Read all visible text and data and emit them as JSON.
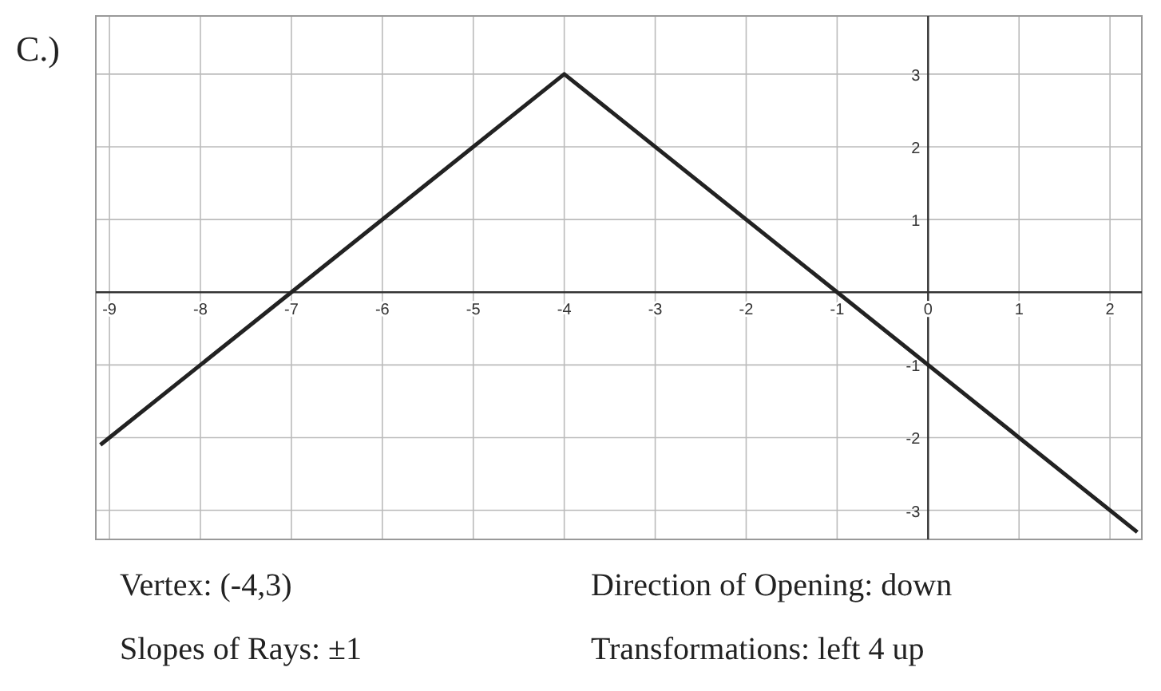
{
  "chart_data": {
    "type": "line",
    "title": "C.)",
    "x": [
      -9.1,
      -4,
      2.3
    ],
    "series": [
      {
        "color": "#222222",
        "values": [
          -2.1,
          3,
          -3.3
        ]
      }
    ],
    "xlim": [
      -9.15,
      2.35
    ],
    "ylim": [
      -3.4,
      3.8
    ],
    "xticks": [
      -9,
      -8,
      -7,
      -6,
      -5,
      -4,
      -3,
      -2,
      -1,
      0,
      1,
      2
    ],
    "yticks": [
      -3,
      -2,
      -1,
      1,
      2,
      3
    ],
    "grid": true,
    "marker": "none",
    "line_style": "solid",
    "annotations": [
      "Vertex: (-4,3)",
      "Direction of Opening: down",
      "Slopes of Rays: ±1",
      "Transformations: left 4 up"
    ]
  }
}
